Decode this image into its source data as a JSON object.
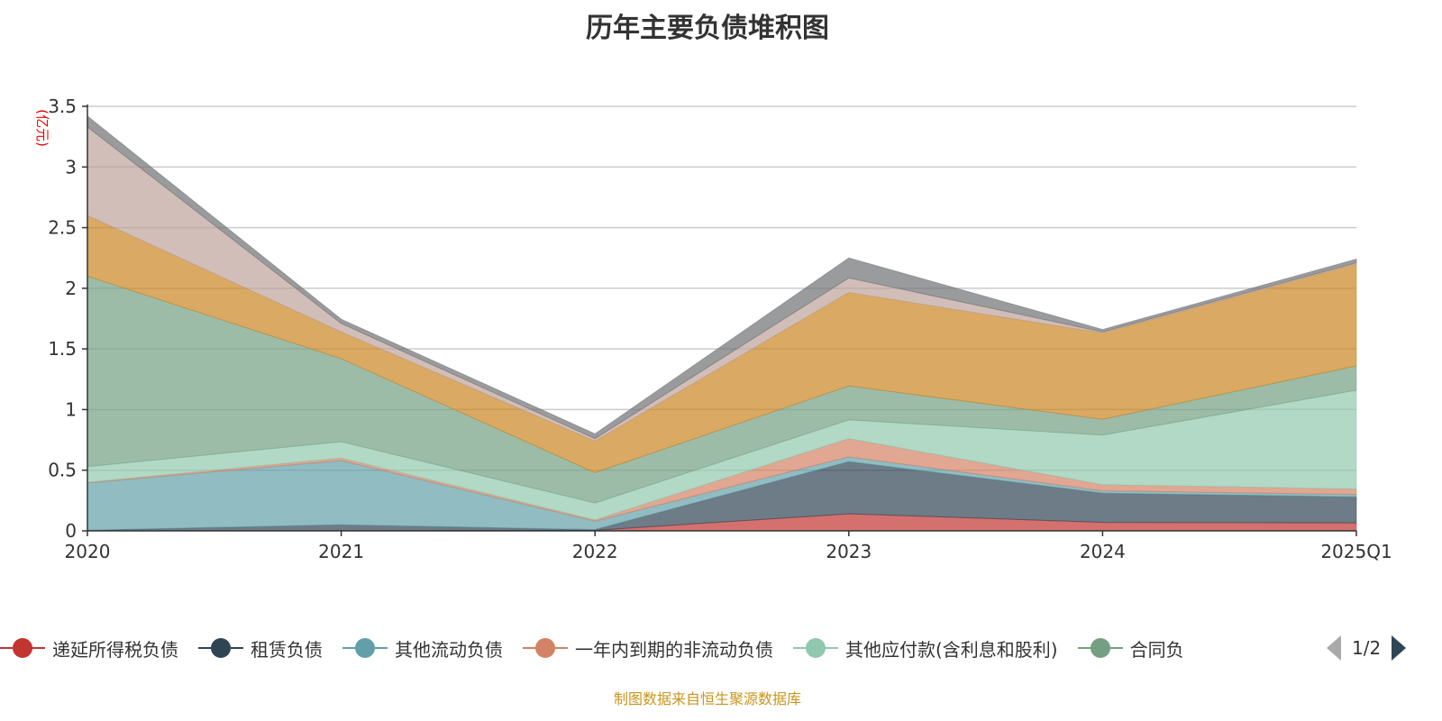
{
  "chart_data": {
    "type": "area",
    "stacked": true,
    "title": "历年主要负债堆积图",
    "ylabel": "(亿元)",
    "xlabel": "",
    "ylim": [
      0,
      3.5
    ],
    "yticks": [
      "0",
      "0.5",
      "1",
      "1.5",
      "2",
      "2.5",
      "3",
      "3.5"
    ],
    "categories": [
      "2020",
      "2021",
      "2022",
      "2023",
      "2024",
      "2025Q1"
    ],
    "grid": true,
    "legend_position": "bottom",
    "series": [
      {
        "name": "递延所得税负债",
        "color": "#c23531",
        "values": [
          0.0,
          0.0,
          0.005,
          0.14,
          0.07,
          0.065
        ]
      },
      {
        "name": "租赁负债",
        "color": "#2f4554",
        "values": [
          0.005,
          0.05,
          0.005,
          0.43,
          0.24,
          0.215
        ]
      },
      {
        "name": "其他流动负债",
        "color": "#61a0a8",
        "values": [
          0.39,
          0.53,
          0.07,
          0.04,
          0.02,
          0.02
        ]
      },
      {
        "name": "一年内到期的非流动负债",
        "color": "#d48265",
        "values": [
          0.005,
          0.02,
          0.01,
          0.15,
          0.05,
          0.045
        ]
      },
      {
        "name": "其他应付款(含利息和股利)",
        "color": "#91c7ae",
        "values": [
          0.13,
          0.135,
          0.14,
          0.155,
          0.41,
          0.815
        ]
      },
      {
        "name": "合同负",
        "color": "#749f83",
        "values": [
          1.57,
          0.685,
          0.25,
          0.28,
          0.13,
          0.2
        ]
      },
      {
        "name": "",
        "color": "#ca8622",
        "values": [
          0.5,
          0.22,
          0.26,
          0.77,
          0.71,
          0.84
        ]
      },
      {
        "name": "",
        "color": "#bda29a",
        "values": [
          0.73,
          0.07,
          0.02,
          0.12,
          0.01,
          0.01
        ]
      },
      {
        "name": "",
        "color": "#6e7074",
        "values": [
          0.09,
          0.035,
          0.04,
          0.165,
          0.02,
          0.03
        ]
      }
    ]
  },
  "legend": {
    "page": "1/2",
    "visible_count": 6
  },
  "footer": "制图数据来自恒生聚源数据库"
}
